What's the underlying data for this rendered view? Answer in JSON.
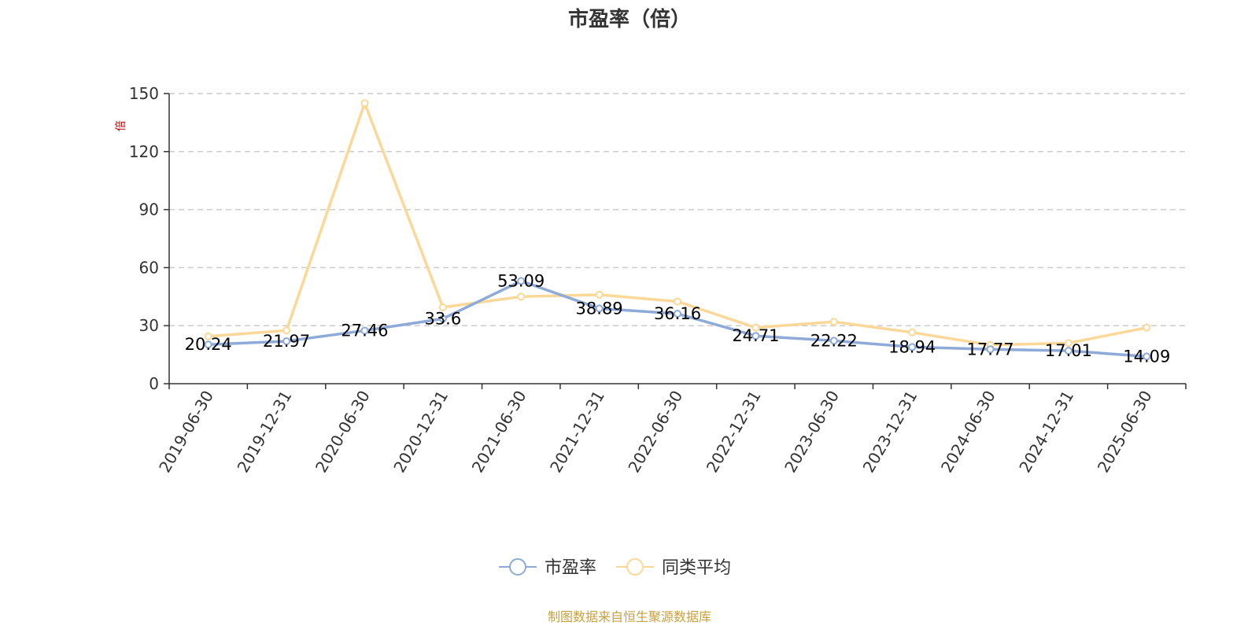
{
  "chart_data": {
    "type": "line",
    "title": "市盈率（倍）",
    "ylabel": "倍",
    "xlabel": "",
    "categories": [
      "2019-06-30",
      "2019-12-31",
      "2020-06-30",
      "2020-12-31",
      "2021-06-30",
      "2021-12-31",
      "2022-06-30",
      "2022-12-31",
      "2023-06-30",
      "2023-12-31",
      "2024-06-30",
      "2024-12-31",
      "2025-06-30"
    ],
    "ylim": [
      0,
      150
    ],
    "yticks": [
      0,
      30,
      60,
      90,
      120,
      150
    ],
    "grid": true,
    "legend_position": "bottom",
    "series": [
      {
        "name": "市盈率",
        "color": "#8eaad8",
        "values": [
          20.24,
          21.97,
          27.46,
          33.6,
          53.09,
          38.89,
          36.16,
          24.71,
          22.22,
          18.94,
          17.77,
          17.01,
          14.09
        ],
        "labels": [
          "20.24",
          "21.97",
          "27.46",
          "33.6",
          "53.09",
          "38.89",
          "36.16",
          "24.71",
          "22.22",
          "18.94",
          "17.77",
          "17.01",
          "14.09"
        ]
      },
      {
        "name": "同类平均",
        "color": "#fbd898",
        "values": [
          24.5,
          27.5,
          145,
          39.5,
          45,
          46,
          42.5,
          29,
          32,
          26.5,
          20,
          21,
          29
        ]
      }
    ]
  },
  "source_note": "制图数据来自恒生聚源数据库"
}
